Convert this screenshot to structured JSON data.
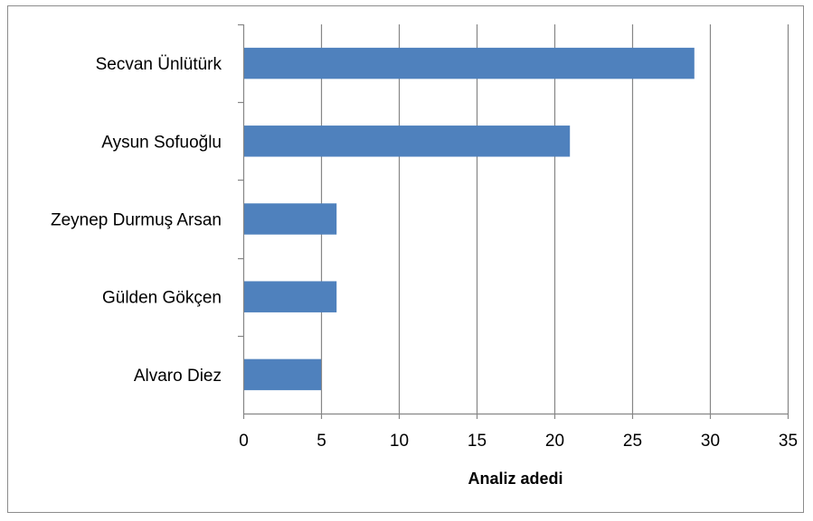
{
  "chart_data": {
    "type": "bar",
    "orientation": "horizontal",
    "title": "",
    "xlabel": "Analiz adedi",
    "ylabel": "",
    "categories": [
      "Secvan Ünlütürk",
      "Aysun Sofuoğlu",
      "Zeynep Durmuş Arsan",
      "Gülden Gökçen",
      "Alvaro Diez "
    ],
    "values": [
      29,
      21,
      6,
      6,
      5
    ],
    "xlim": [
      0,
      35
    ],
    "xticks": [
      "0",
      "5",
      "10",
      "15",
      "20",
      "25",
      "30",
      "35"
    ],
    "grid": "vertical",
    "legend": "none",
    "bar_color": "#4f81bd",
    "grid_color": "#868686"
  }
}
